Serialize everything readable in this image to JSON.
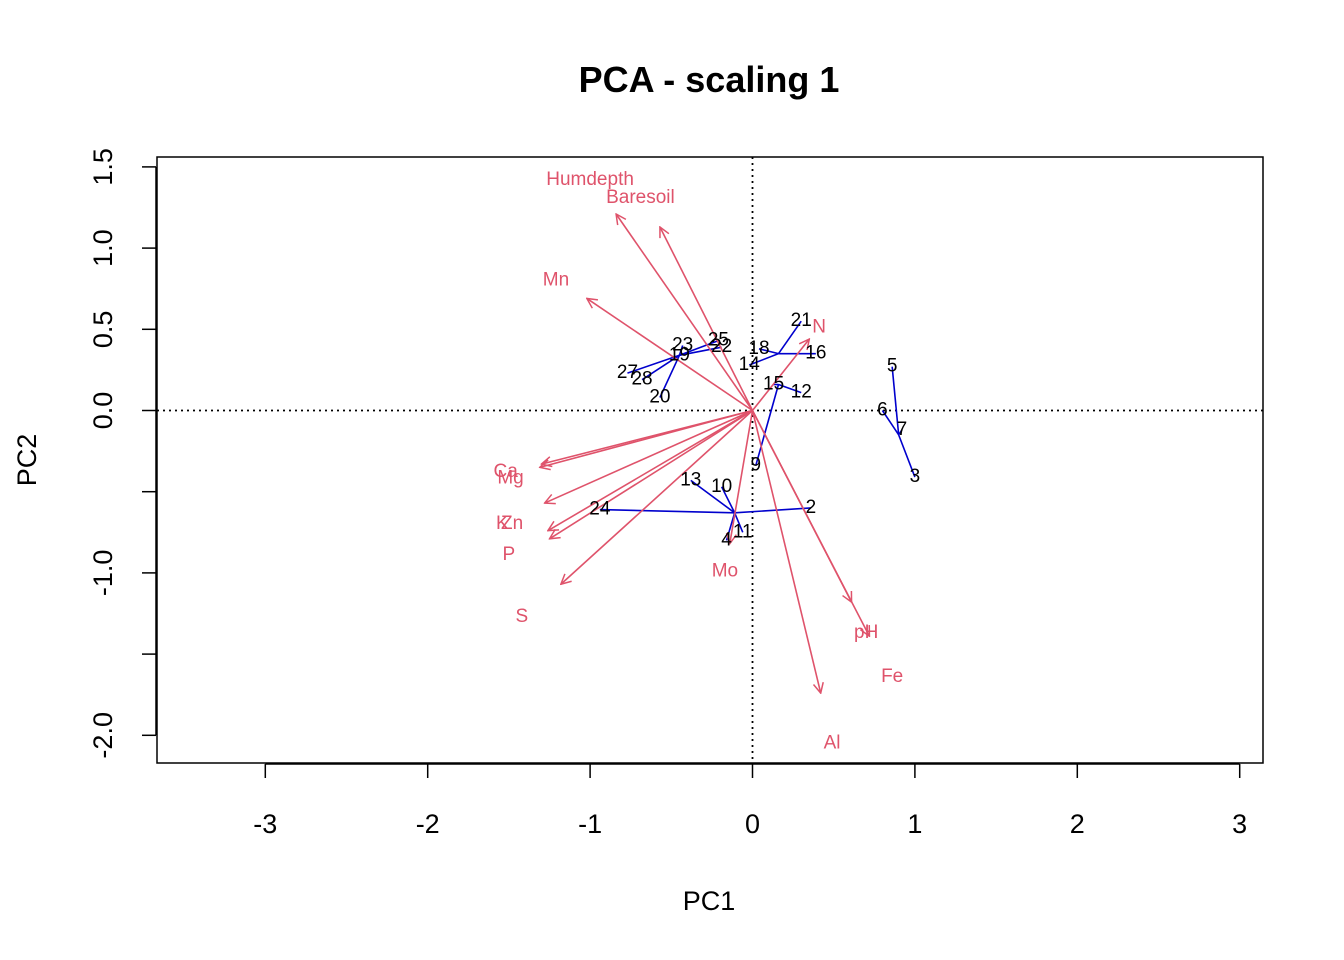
{
  "chart_data": {
    "type": "scatter",
    "title": "PCA - scaling 1",
    "xlabel": "PC1",
    "ylabel": "PC2",
    "xlim": [
      -3.0,
      3.0
    ],
    "ylim": [
      -2.0,
      1.5
    ],
    "xticks": [
      -3,
      -2,
      -1,
      0,
      1,
      2,
      3
    ],
    "xtick_labels": [
      "-3",
      "-2",
      "-1",
      "0",
      "1",
      "2",
      "3"
    ],
    "yticks": [
      -2.0,
      -1.5,
      -1.0,
      -0.5,
      0.0,
      0.5,
      1.0,
      1.5
    ],
    "ytick_labels": [
      "-2.0",
      "",
      "-1.0",
      "",
      "0.0",
      "0.5",
      "1.0",
      "1.5"
    ],
    "reference_lines": {
      "x": 0,
      "y": 0,
      "style": "dotted"
    },
    "colors": {
      "sites": "#000000",
      "spider": "#0000cd",
      "variables": "#df536b"
    },
    "sites": [
      {
        "label": "2",
        "x": 0.36,
        "y": -0.6
      },
      {
        "label": "3",
        "x": 1.0,
        "y": -0.41
      },
      {
        "label": "4",
        "x": -0.16,
        "y": -0.8
      },
      {
        "label": "5",
        "x": 0.86,
        "y": 0.27
      },
      {
        "label": "6",
        "x": 0.8,
        "y": 0.0
      },
      {
        "label": "7",
        "x": 0.92,
        "y": -0.12
      },
      {
        "label": "9",
        "x": 0.02,
        "y": -0.34
      },
      {
        "label": "10",
        "x": -0.19,
        "y": -0.47
      },
      {
        "label": "11",
        "x": -0.06,
        "y": -0.75
      },
      {
        "label": "12",
        "x": 0.3,
        "y": 0.11
      },
      {
        "label": "13",
        "x": -0.38,
        "y": -0.43
      },
      {
        "label": "14",
        "x": -0.02,
        "y": 0.28
      },
      {
        "label": "15",
        "x": 0.13,
        "y": 0.16
      },
      {
        "label": "16",
        "x": 0.39,
        "y": 0.35
      },
      {
        "label": "18",
        "x": 0.04,
        "y": 0.38
      },
      {
        "label": "19",
        "x": -0.45,
        "y": 0.34
      },
      {
        "label": "20",
        "x": -0.57,
        "y": 0.08
      },
      {
        "label": "21",
        "x": 0.3,
        "y": 0.55
      },
      {
        "label": "22",
        "x": -0.19,
        "y": 0.39
      },
      {
        "label": "23",
        "x": -0.43,
        "y": 0.4
      },
      {
        "label": "24",
        "x": -0.94,
        "y": -0.61
      },
      {
        "label": "25",
        "x": -0.21,
        "y": 0.43
      },
      {
        "label": "27",
        "x": -0.77,
        "y": 0.23
      },
      {
        "label": "28",
        "x": -0.68,
        "y": 0.19
      }
    ],
    "spider_centroids": [
      {
        "x": 0.16,
        "y": 0.35
      },
      {
        "x": -0.45,
        "y": 0.34
      },
      {
        "x": 0.16,
        "y": 0.16
      },
      {
        "x": 0.9,
        "y": -0.15
      },
      {
        "x": -0.11,
        "y": -0.63
      }
    ],
    "spider_segments": [
      {
        "centroid": 0,
        "site": "21"
      },
      {
        "centroid": 0,
        "site": "16"
      },
      {
        "centroid": 0,
        "site": "18"
      },
      {
        "centroid": 0,
        "site": "14"
      },
      {
        "centroid": 1,
        "site": "23"
      },
      {
        "centroid": 1,
        "site": "25"
      },
      {
        "centroid": 1,
        "site": "22"
      },
      {
        "centroid": 1,
        "site": "27"
      },
      {
        "centroid": 1,
        "site": "28"
      },
      {
        "centroid": 1,
        "site": "20"
      },
      {
        "centroid": 2,
        "site": "15"
      },
      {
        "centroid": 2,
        "site": "12"
      },
      {
        "centroid": 2,
        "site": "9"
      },
      {
        "centroid": 3,
        "site": "5"
      },
      {
        "centroid": 3,
        "site": "6"
      },
      {
        "centroid": 3,
        "site": "7"
      },
      {
        "centroid": 3,
        "site": "3"
      },
      {
        "centroid": 4,
        "site": "13"
      },
      {
        "centroid": 4,
        "site": "10"
      },
      {
        "centroid": 4,
        "site": "11"
      },
      {
        "centroid": 4,
        "site": "4"
      },
      {
        "centroid": 4,
        "site": "24"
      },
      {
        "centroid": 4,
        "site": "2"
      }
    ],
    "variables": [
      {
        "label": "N",
        "x": 0.35,
        "y": 0.44,
        "label_x": 0.41,
        "label_y": 0.51
      },
      {
        "label": "P",
        "x": -1.25,
        "y": -0.79,
        "label_x": -1.5,
        "label_y": -0.89
      },
      {
        "label": "K",
        "x": -1.28,
        "y": -0.57,
        "label_x": -1.54,
        "label_y": -0.7
      },
      {
        "label": "Ca",
        "x": -1.3,
        "y": -0.33,
        "label_x": -1.52,
        "label_y": -0.38
      },
      {
        "label": "Mg",
        "x": -1.31,
        "y": -0.35,
        "label_x": -1.49,
        "label_y": -0.42
      },
      {
        "label": "S",
        "x": -1.18,
        "y": -1.07,
        "label_x": -1.42,
        "label_y": -1.27
      },
      {
        "label": "Al",
        "x": 0.42,
        "y": -1.74,
        "label_x": 0.49,
        "label_y": -2.05
      },
      {
        "label": "Fe",
        "x": 0.72,
        "y": -1.39,
        "label_x": 0.86,
        "label_y": -1.64
      },
      {
        "label": "Mn",
        "x": -1.02,
        "y": 0.69,
        "label_x": -1.21,
        "label_y": 0.8
      },
      {
        "label": "Zn",
        "x": -1.26,
        "y": -0.74,
        "label_x": -1.48,
        "label_y": -0.7
      },
      {
        "label": "Mo",
        "x": -0.14,
        "y": -0.82,
        "label_x": -0.17,
        "label_y": -0.99
      },
      {
        "label": "Baresoil",
        "x": -0.57,
        "y": 1.13,
        "label_x": -0.69,
        "label_y": 1.31
      },
      {
        "label": "Humdepth",
        "x": -0.84,
        "y": 1.21,
        "label_x": -1.0,
        "label_y": 1.42
      },
      {
        "label": "pH",
        "x": 0.61,
        "y": -1.18,
        "label_x": 0.7,
        "label_y": -1.37
      }
    ]
  }
}
